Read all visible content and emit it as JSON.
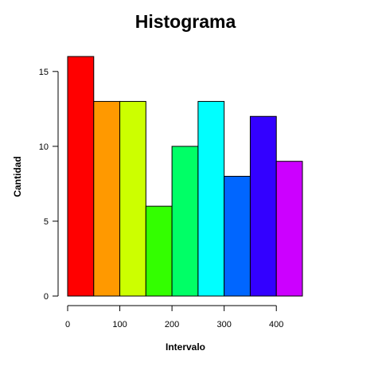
{
  "chart_data": {
    "type": "bar",
    "title": "Histograma",
    "xlabel": "Intervalo",
    "ylabel": "Cantidad",
    "bin_edges": [
      0,
      50,
      100,
      150,
      200,
      250,
      300,
      350,
      400,
      450
    ],
    "values": [
      16,
      13,
      13,
      6,
      10,
      13,
      8,
      12,
      9
    ],
    "colors": [
      "#FF0000",
      "#FF9900",
      "#CCFF00",
      "#33FF00",
      "#00FF66",
      "#00FFFF",
      "#0066FF",
      "#3300FF",
      "#CC00FF"
    ],
    "xlim": [
      0,
      450
    ],
    "ylim": [
      0,
      16
    ],
    "x_ticks": [
      0,
      100,
      200,
      300,
      400
    ],
    "y_ticks": [
      0,
      5,
      10,
      15
    ],
    "grid": false,
    "legend": "none"
  }
}
